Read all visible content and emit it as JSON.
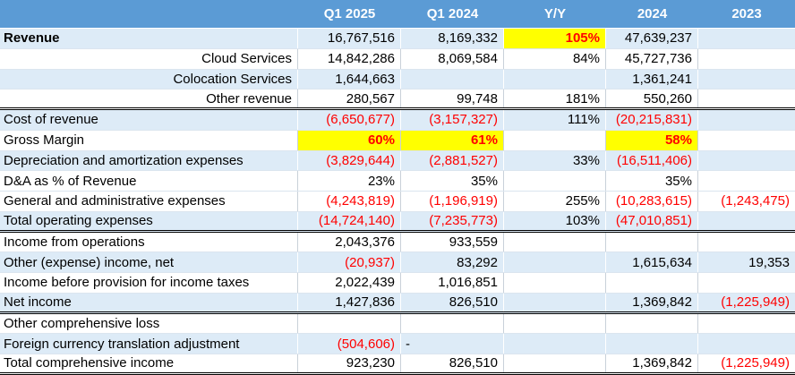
{
  "colors": {
    "header_bg": "#5B9BD5",
    "header_text": "#FFFFFF",
    "band_bg": "#DDEBF7",
    "highlight_bg": "#FFFF00",
    "negative_text": "#FF0000"
  },
  "table": {
    "columns": [
      {
        "key": "label",
        "label": ""
      },
      {
        "key": "q1_2025",
        "label": "Q1 2025"
      },
      {
        "key": "q1_2024",
        "label": "Q1 2024"
      },
      {
        "key": "yy",
        "label": "Y/Y"
      },
      {
        "key": "fy_2024",
        "label": "2024"
      },
      {
        "key": "fy_2023",
        "label": "2023"
      }
    ],
    "rows": [
      {
        "label": "Revenue",
        "label_bold": true,
        "label_align": "left",
        "shade": "blue",
        "cells": {
          "q1_2025": {
            "value": "16,767,516"
          },
          "q1_2024": {
            "value": "8,169,332"
          },
          "yy": {
            "value": "105%",
            "negative": true,
            "highlight": true
          },
          "fy_2024": {
            "value": "47,639,237"
          }
        }
      },
      {
        "label": "Cloud Services",
        "label_align": "right",
        "shade": "white",
        "cells": {
          "q1_2025": {
            "value": "14,842,286"
          },
          "q1_2024": {
            "value": "8,069,584"
          },
          "yy": {
            "value": "84%"
          },
          "fy_2024": {
            "value": "45,727,736"
          }
        }
      },
      {
        "label": "Colocation Services",
        "label_align": "right",
        "shade": "blue",
        "cells": {
          "q1_2025": {
            "value": "1,644,663"
          },
          "fy_2024": {
            "value": "1,361,241"
          }
        }
      },
      {
        "label": "Other revenue",
        "label_align": "right",
        "shade": "white",
        "border_bottom": "double",
        "cells": {
          "q1_2025": {
            "value": "280,567"
          },
          "q1_2024": {
            "value": "99,748"
          },
          "yy": {
            "value": "181%"
          },
          "fy_2024": {
            "value": "550,260"
          }
        }
      },
      {
        "label": "Cost of revenue",
        "label_align": "left",
        "shade": "blue",
        "cells": {
          "q1_2025": {
            "value": "(6,650,677)",
            "negative": true
          },
          "q1_2024": {
            "value": "(3,157,327)",
            "negative": true
          },
          "yy": {
            "value": "111%"
          },
          "fy_2024": {
            "value": "(20,215,831)",
            "negative": true
          }
        }
      },
      {
        "label": "Gross Margin",
        "label_align": "left",
        "shade": "white",
        "cells": {
          "q1_2025": {
            "value": "60%",
            "negative": true,
            "highlight": true
          },
          "q1_2024": {
            "value": "61%",
            "negative": true,
            "highlight": true
          },
          "fy_2024": {
            "value": "58%",
            "negative": true,
            "highlight": true
          }
        }
      },
      {
        "label": "Depreciation and amortization expenses",
        "label_align": "left",
        "shade": "blue",
        "cells": {
          "q1_2025": {
            "value": "(3,829,644)",
            "negative": true
          },
          "q1_2024": {
            "value": "(2,881,527)",
            "negative": true
          },
          "yy": {
            "value": "33%"
          },
          "fy_2024": {
            "value": "(16,511,406)",
            "negative": true
          }
        }
      },
      {
        "label": "D&A as % of Revenue",
        "label_align": "left",
        "shade": "white",
        "cells": {
          "q1_2025": {
            "value": "23%"
          },
          "q1_2024": {
            "value": "35%"
          },
          "fy_2024": {
            "value": "35%"
          }
        }
      },
      {
        "label": "General and administrative expenses",
        "label_align": "left",
        "shade": "white",
        "cells": {
          "q1_2025": {
            "value": "(4,243,819)",
            "negative": true
          },
          "q1_2024": {
            "value": "(1,196,919)",
            "negative": true
          },
          "yy": {
            "value": "255%"
          },
          "fy_2024": {
            "value": "(10,283,615)",
            "negative": true
          },
          "fy_2023": {
            "value": "(1,243,475)",
            "negative": true
          }
        }
      },
      {
        "label": "Total operating expenses",
        "label_align": "left",
        "shade": "blue",
        "border_bottom": "double",
        "cells": {
          "q1_2025": {
            "value": "(14,724,140)",
            "negative": true
          },
          "q1_2024": {
            "value": "(7,235,773)",
            "negative": true
          },
          "yy": {
            "value": "103%"
          },
          "fy_2024": {
            "value": "(47,010,851)",
            "negative": true
          }
        }
      },
      {
        "label": "Income from operations",
        "label_align": "left",
        "shade": "white",
        "cells": {
          "q1_2025": {
            "value": "2,043,376"
          },
          "q1_2024": {
            "value": "933,559"
          }
        }
      },
      {
        "label": "Other (expense) income, net",
        "label_align": "left",
        "shade": "blue",
        "cells": {
          "q1_2025": {
            "value": "(20,937)",
            "negative": true
          },
          "q1_2024": {
            "value": "83,292"
          },
          "fy_2024": {
            "value": "1,615,634"
          },
          "fy_2023": {
            "value": "19,353"
          }
        }
      },
      {
        "label": "Income before provision for income taxes",
        "label_align": "left",
        "shade": "white",
        "cells": {
          "q1_2025": {
            "value": "2,022,439"
          },
          "q1_2024": {
            "value": "1,016,851"
          }
        }
      },
      {
        "label": "Net income",
        "label_align": "left",
        "shade": "blue",
        "border_bottom": "double",
        "cells": {
          "q1_2025": {
            "value": "1,427,836"
          },
          "q1_2024": {
            "value": "826,510"
          },
          "fy_2024": {
            "value": "1,369,842"
          },
          "fy_2023": {
            "value": "(1,225,949)",
            "negative": true
          }
        }
      },
      {
        "label": "Other comprehensive loss",
        "label_align": "left",
        "shade": "white",
        "cells": {}
      },
      {
        "label": "Foreign currency translation adjustment",
        "label_align": "left",
        "shade": "blue",
        "cells": {
          "q1_2025": {
            "value": "(504,606)",
            "negative": true
          },
          "q1_2024": {
            "value": "-",
            "align": "left"
          }
        }
      },
      {
        "label": "Total comprehensive income",
        "label_align": "left",
        "shade": "white",
        "border_bottom": "double",
        "cells": {
          "q1_2025": {
            "value": "923,230"
          },
          "q1_2024": {
            "value": "826,510"
          },
          "fy_2024": {
            "value": "1,369,842"
          },
          "fy_2023": {
            "value": "(1,225,949)",
            "negative": true
          }
        }
      }
    ]
  }
}
